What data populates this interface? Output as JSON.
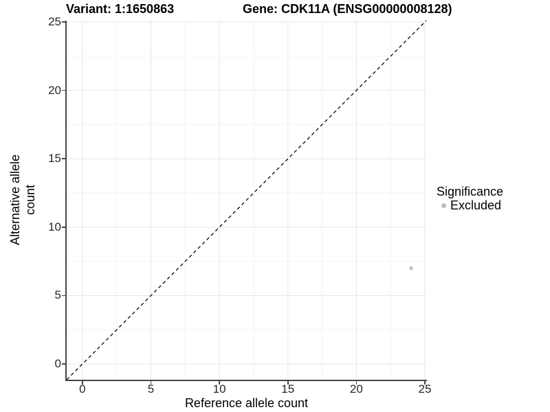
{
  "header": {
    "variant_title": "Variant: 1:1650863",
    "gene_title": "Gene: CDK11A (ENSG00000008128)"
  },
  "axes": {
    "x_label": "Reference allele count",
    "y_label": "Alternative allele count"
  },
  "legend": {
    "title": "Significance",
    "items": [
      {
        "label": "Excluded",
        "color": "#bebebe",
        "marker": "circle"
      }
    ]
  },
  "chart_data": {
    "type": "scatter",
    "title": "Variant: 1:1650863   Gene: CDK11A (ENSG00000008128)",
    "xlabel": "Reference allele count",
    "ylabel": "Alternative allele count",
    "xlim": [
      -1.15,
      25.1
    ],
    "ylim": [
      -1.15,
      25.1
    ],
    "x_ticks": [
      0,
      5,
      10,
      15,
      20,
      25
    ],
    "y_ticks": [
      0,
      5,
      10,
      15,
      20,
      25
    ],
    "x_minor_ticks": [
      2.5,
      7.5,
      12.5,
      17.5,
      22.5
    ],
    "y_minor_ticks": [
      2.5,
      7.5,
      12.5,
      17.5,
      22.5
    ],
    "grid": true,
    "legend_position": "right",
    "series": [
      {
        "name": "Excluded",
        "color": "#bebebe",
        "points": [
          {
            "x": 24,
            "y": 7
          }
        ]
      }
    ],
    "reference_line": {
      "type": "identity y=x",
      "style": "dashed",
      "color": "#000000"
    }
  },
  "colors": {
    "background": "#ffffff",
    "grid_major": "#e6e6e6",
    "grid_minor": "#f3f3f3",
    "axis_line": "#454545",
    "tick_text": "#262626",
    "point": "#bebebe",
    "dashed_line": "#000000"
  }
}
